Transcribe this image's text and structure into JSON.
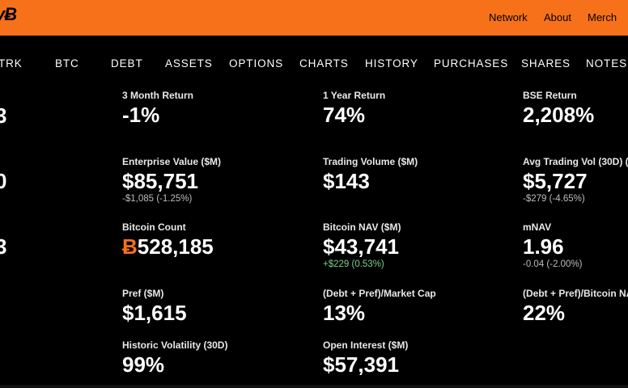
{
  "header": {
    "logo_text": "yɃ",
    "links": [
      "Network",
      "About",
      "Merch"
    ],
    "accent_color": "#F7711A"
  },
  "tabs": [
    "TRK",
    "BTC",
    "DEBT",
    "ASSETS",
    "OPTIONS",
    "CHARTS",
    "HISTORY",
    "PURCHASES",
    "SHARES",
    "NOTES"
  ],
  "left_edge_values": [
    "3",
    "0",
    "3"
  ],
  "stats": {
    "three_month_return": {
      "label": "3 Month Return",
      "value": "-1%"
    },
    "one_year_return": {
      "label": "1 Year Return",
      "value": "74%"
    },
    "bse_return": {
      "label": "BSE Return",
      "value": "2,208%"
    },
    "enterprise_value": {
      "label": "Enterprise Value ($M)",
      "value": "$85,751",
      "delta": "-$1,085 (-1.25%)"
    },
    "trading_volume": {
      "label": "Trading Volume ($M)",
      "value": "$143"
    },
    "avg_trading_vol": {
      "label": "Avg Trading Vol (30D) ($",
      "value": "$5,727",
      "delta": "-$279 (-4.65%)"
    },
    "bitcoin_count": {
      "label": "Bitcoin Count",
      "symbol": "Ƀ",
      "value": "528,185"
    },
    "bitcoin_nav": {
      "label": "Bitcoin NAV ($M)",
      "value": "$43,741",
      "delta": "+$229 (0.53%)"
    },
    "mnav": {
      "label": "mNAV",
      "value": "1.96",
      "delta": "-0.04 (-2.00%)"
    },
    "pref": {
      "label": "Pref ($M)",
      "value": "$1,615"
    },
    "debt_pref_mcap": {
      "label": "(Debt + Pref)/Market Cap",
      "value": "13%"
    },
    "debt_pref_btc": {
      "label": "(Debt + Pref)/Bitcoin NA",
      "value": "22%"
    },
    "historic_volatility": {
      "label": "Historic Volatility (30D)",
      "value": "99%"
    },
    "open_interest": {
      "label": "Open Interest ($M)",
      "value": "$57,391"
    }
  }
}
